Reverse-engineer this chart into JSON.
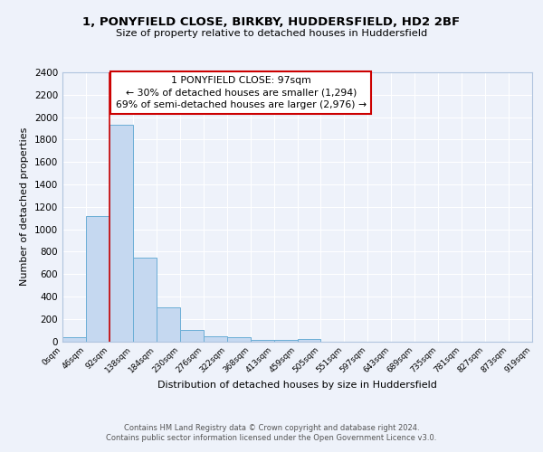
{
  "title_line1": "1, PONYFIELD CLOSE, BIRKBY, HUDDERSFIELD, HD2 2BF",
  "title_line2": "Size of property relative to detached houses in Huddersfield",
  "xlabel": "Distribution of detached houses by size in Huddersfield",
  "ylabel": "Number of detached properties",
  "bar_values": [
    35,
    1120,
    1930,
    750,
    300,
    100,
    45,
    35,
    15,
    12,
    20,
    0,
    0,
    0,
    0,
    0,
    0,
    0,
    0,
    0
  ],
  "bin_labels": [
    "0sqm",
    "46sqm",
    "92sqm",
    "138sqm",
    "184sqm",
    "230sqm",
    "276sqm",
    "322sqm",
    "368sqm",
    "413sqm",
    "459sqm",
    "505sqm",
    "551sqm",
    "597sqm",
    "643sqm",
    "689sqm",
    "735sqm",
    "781sqm",
    "827sqm",
    "873sqm",
    "919sqm"
  ],
  "bar_color": "#c5d8f0",
  "bar_edge_color": "#6baed6",
  "vline_x": 2,
  "vline_color": "#cc0000",
  "annotation_text": "1 PONYFIELD CLOSE: 97sqm\n← 30% of detached houses are smaller (1,294)\n69% of semi-detached houses are larger (2,976) →",
  "annotation_box_color": "#ffffff",
  "annotation_box_edge": "#cc0000",
  "ylim": [
    0,
    2400
  ],
  "yticks": [
    0,
    200,
    400,
    600,
    800,
    1000,
    1200,
    1400,
    1600,
    1800,
    2000,
    2200,
    2400
  ],
  "footer_line1": "Contains HM Land Registry data © Crown copyright and database right 2024.",
  "footer_line2": "Contains public sector information licensed under the Open Government Licence v3.0.",
  "background_color": "#eef2fa",
  "plot_bg_color": "#eef2fa",
  "grid_color": "#ffffff"
}
